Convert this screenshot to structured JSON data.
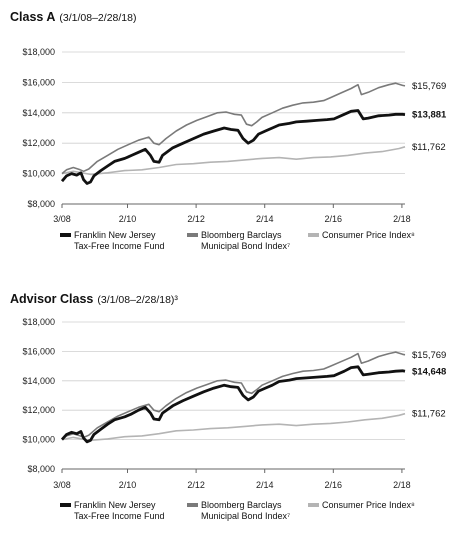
{
  "chart_data": [
    {
      "type": "line",
      "title": "Class A",
      "subtitle": "(3/1/08–2/28/18)",
      "x_ticks": [
        "3/08",
        "2/10",
        "2/12",
        "2/14",
        "2/16",
        "2/18"
      ],
      "x_tick_years": [
        2008.17,
        2010.08,
        2012.08,
        2014.08,
        2016.08,
        2018.08
      ],
      "x_range": [
        2008.17,
        2018.17
      ],
      "y_ticks": [
        "$8,000",
        "$10,000",
        "$12,000",
        "$14,000",
        "$16,000",
        "$18,000"
      ],
      "ylim": [
        8000,
        18000
      ],
      "grid": true,
      "series": [
        {
          "name": "Franklin New Jersey\nTax-Free Income Fund",
          "color": "#111111",
          "end_label": "$13,881",
          "end_bold": true,
          "x": [
            2008.17,
            2008.3,
            2008.45,
            2008.6,
            2008.72,
            2008.8,
            2008.9,
            2009.0,
            2009.1,
            2009.3,
            2009.5,
            2009.7,
            2010.0,
            2010.2,
            2010.4,
            2010.6,
            2010.75,
            2010.85,
            2011.0,
            2011.1,
            2011.4,
            2011.7,
            2012.0,
            2012.3,
            2012.6,
            2012.9,
            2013.1,
            2013.3,
            2013.45,
            2013.6,
            2013.75,
            2013.9,
            2014.1,
            2014.3,
            2014.5,
            2014.8,
            2015.0,
            2015.3,
            2015.6,
            2015.9,
            2016.1,
            2016.4,
            2016.6,
            2016.8,
            2016.95,
            2017.1,
            2017.4,
            2017.7,
            2017.9,
            2018.1,
            2018.17
          ],
          "values": [
            9500,
            9850,
            10000,
            9900,
            10050,
            9600,
            9350,
            9450,
            9850,
            10200,
            10500,
            10800,
            11000,
            11200,
            11400,
            11600,
            11200,
            10800,
            10750,
            11200,
            11700,
            12000,
            12300,
            12600,
            12800,
            13000,
            12900,
            12850,
            12300,
            12000,
            12200,
            12600,
            12800,
            13000,
            13200,
            13300,
            13400,
            13450,
            13500,
            13550,
            13600,
            13900,
            14100,
            14150,
            13600,
            13650,
            13800,
            13850,
            13900,
            13900,
            13881
          ]
        },
        {
          "name": "Bloomberg Barclays\nMunicipal Bond Index⁷",
          "color": "#7a7a7a",
          "end_label": "$15,769",
          "end_bold": false,
          "x": [
            2008.17,
            2008.3,
            2008.5,
            2008.7,
            2008.8,
            2008.95,
            2009.2,
            2009.5,
            2009.8,
            2010.1,
            2010.4,
            2010.7,
            2010.85,
            2011.0,
            2011.2,
            2011.5,
            2011.8,
            2012.1,
            2012.4,
            2012.7,
            2012.95,
            2013.2,
            2013.4,
            2013.55,
            2013.7,
            2013.85,
            2014.0,
            2014.3,
            2014.6,
            2014.9,
            2015.2,
            2015.5,
            2015.8,
            2016.0,
            2016.3,
            2016.6,
            2016.8,
            2016.9,
            2017.1,
            2017.4,
            2017.7,
            2017.9,
            2018.1,
            2018.17
          ],
          "values": [
            10000,
            10250,
            10400,
            10250,
            10150,
            10300,
            10800,
            11200,
            11600,
            11900,
            12200,
            12400,
            12000,
            11900,
            12300,
            12800,
            13200,
            13500,
            13750,
            14000,
            14050,
            13900,
            13850,
            13250,
            13150,
            13400,
            13700,
            14000,
            14300,
            14500,
            14650,
            14700,
            14800,
            15000,
            15300,
            15600,
            15850,
            15200,
            15350,
            15650,
            15850,
            15950,
            15800,
            15769
          ]
        },
        {
          "name": "Consumer Price Index⁸",
          "color": "#b4b4b4",
          "end_label": "$11,762",
          "end_bold": false,
          "x": [
            2008.17,
            2008.5,
            2008.75,
            2009.0,
            2009.5,
            2010.0,
            2010.5,
            2011.0,
            2011.5,
            2012.0,
            2012.5,
            2013.0,
            2013.5,
            2014.0,
            2014.5,
            2015.0,
            2015.5,
            2016.0,
            2016.5,
            2017.0,
            2017.5,
            2018.0,
            2018.17
          ],
          "values": [
            10000,
            10150,
            10050,
            9950,
            10050,
            10200,
            10250,
            10400,
            10600,
            10650,
            10750,
            10800,
            10900,
            11000,
            11050,
            10950,
            11050,
            11100,
            11200,
            11350,
            11450,
            11650,
            11762
          ]
        }
      ]
    },
    {
      "type": "line",
      "title": "Advisor Class",
      "subtitle": "(3/1/08–2/28/18)³",
      "x_ticks": [
        "3/08",
        "2/10",
        "2/12",
        "2/14",
        "2/16",
        "2/18"
      ],
      "x_tick_years": [
        2008.17,
        2010.08,
        2012.08,
        2014.08,
        2016.08,
        2018.08
      ],
      "x_range": [
        2008.17,
        2018.17
      ],
      "y_ticks": [
        "$8,000",
        "$10,000",
        "$12,000",
        "$14,000",
        "$16,000",
        "$18,000"
      ],
      "ylim": [
        8000,
        18000
      ],
      "grid": true,
      "series": [
        {
          "name": "Franklin New Jersey\nTax-Free Income Fund",
          "color": "#111111",
          "end_label": "$14,648",
          "end_bold": true,
          "x": [
            2008.17,
            2008.3,
            2008.45,
            2008.6,
            2008.72,
            2008.8,
            2008.9,
            2009.0,
            2009.1,
            2009.3,
            2009.5,
            2009.7,
            2010.0,
            2010.2,
            2010.4,
            2010.6,
            2010.75,
            2010.85,
            2011.0,
            2011.1,
            2011.4,
            2011.7,
            2012.0,
            2012.3,
            2012.6,
            2012.9,
            2013.1,
            2013.3,
            2013.45,
            2013.6,
            2013.75,
            2013.9,
            2014.1,
            2014.3,
            2014.5,
            2014.8,
            2015.0,
            2015.3,
            2015.6,
            2015.9,
            2016.1,
            2016.4,
            2016.6,
            2016.8,
            2016.95,
            2017.1,
            2017.4,
            2017.7,
            2017.9,
            2018.1,
            2018.17
          ],
          "values": [
            10000,
            10350,
            10500,
            10400,
            10550,
            10100,
            9850,
            9950,
            10350,
            10700,
            11050,
            11350,
            11550,
            11750,
            12000,
            12200,
            11800,
            11400,
            11350,
            11800,
            12300,
            12650,
            12950,
            13250,
            13500,
            13700,
            13600,
            13550,
            13000,
            12700,
            12900,
            13300,
            13500,
            13700,
            13950,
            14050,
            14150,
            14200,
            14250,
            14300,
            14350,
            14650,
            14900,
            14950,
            14400,
            14450,
            14550,
            14600,
            14650,
            14680,
            14648
          ]
        },
        {
          "name": "Bloomberg Barclays\nMunicipal Bond Index⁷",
          "color": "#7a7a7a",
          "end_label": "$15,769",
          "end_bold": false,
          "x": [
            2008.17,
            2008.3,
            2008.5,
            2008.7,
            2008.8,
            2008.95,
            2009.2,
            2009.5,
            2009.8,
            2010.1,
            2010.4,
            2010.7,
            2010.85,
            2011.0,
            2011.2,
            2011.5,
            2011.8,
            2012.1,
            2012.4,
            2012.7,
            2012.95,
            2013.2,
            2013.4,
            2013.55,
            2013.7,
            2013.85,
            2014.0,
            2014.3,
            2014.6,
            2014.9,
            2015.2,
            2015.5,
            2015.8,
            2016.0,
            2016.3,
            2016.6,
            2016.8,
            2016.9,
            2017.1,
            2017.4,
            2017.7,
            2017.9,
            2018.1,
            2018.17
          ],
          "values": [
            10000,
            10250,
            10400,
            10250,
            10150,
            10300,
            10800,
            11200,
            11600,
            11900,
            12200,
            12400,
            12000,
            11900,
            12300,
            12800,
            13200,
            13500,
            13750,
            14000,
            14050,
            13900,
            13850,
            13250,
            13150,
            13400,
            13700,
            14000,
            14300,
            14500,
            14650,
            14700,
            14800,
            15000,
            15300,
            15600,
            15850,
            15200,
            15350,
            15650,
            15850,
            15950,
            15800,
            15769
          ]
        },
        {
          "name": "Consumer Price Index⁸",
          "color": "#b4b4b4",
          "end_label": "$11,762",
          "end_bold": false,
          "x": [
            2008.17,
            2008.5,
            2008.75,
            2009.0,
            2009.5,
            2010.0,
            2010.5,
            2011.0,
            2011.5,
            2012.0,
            2012.5,
            2013.0,
            2013.5,
            2014.0,
            2014.5,
            2015.0,
            2015.5,
            2016.0,
            2016.5,
            2017.0,
            2017.5,
            2018.0,
            2018.17
          ],
          "values": [
            10000,
            10150,
            10050,
            9950,
            10050,
            10200,
            10250,
            10400,
            10600,
            10650,
            10750,
            10800,
            10900,
            11000,
            11050,
            10950,
            11050,
            11100,
            11200,
            11350,
            11450,
            11650,
            11762
          ]
        }
      ]
    }
  ]
}
